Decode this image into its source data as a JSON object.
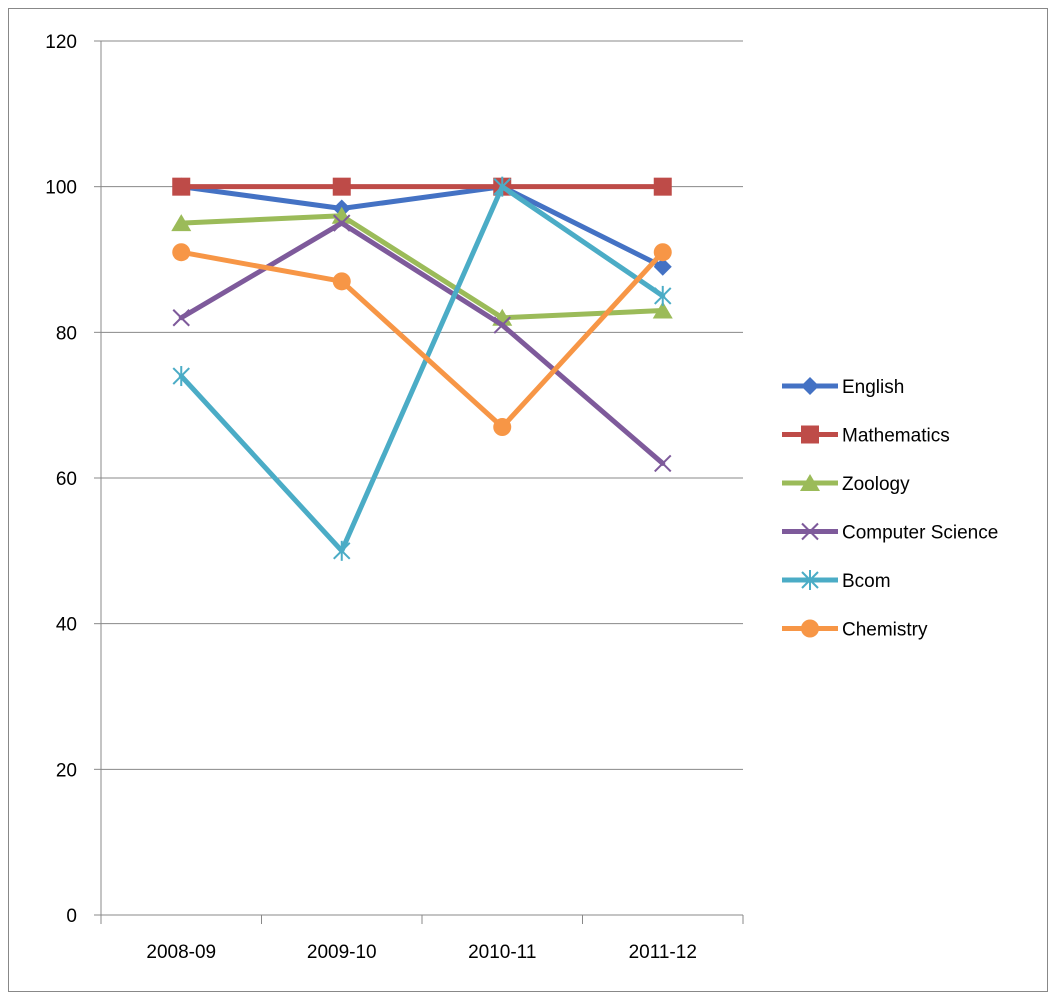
{
  "chart_data": {
    "type": "line",
    "title": "",
    "xlabel": "",
    "ylabel": "",
    "categories": [
      "2008-09",
      "2009-10",
      "2010-11",
      "2011-12"
    ],
    "ylim": [
      0,
      120
    ],
    "yticks": [
      0,
      20,
      40,
      60,
      80,
      100,
      120
    ],
    "grid": true,
    "legend_position": "right",
    "series": [
      {
        "name": "English",
        "values": [
          100,
          97,
          100,
          89
        ],
        "color": "#4472C4",
        "marker": "diamond"
      },
      {
        "name": "Mathematics",
        "values": [
          100,
          100,
          100,
          100
        ],
        "color": "#BE4B48",
        "marker": "square"
      },
      {
        "name": "Zoology",
        "values": [
          95,
          96,
          82,
          83
        ],
        "color": "#9BBB59",
        "marker": "triangle"
      },
      {
        "name": "Computer Science",
        "values": [
          82,
          95,
          81,
          62
        ],
        "color": "#7E5A9B",
        "marker": "x"
      },
      {
        "name": "Bcom",
        "values": [
          74,
          50,
          100,
          85
        ],
        "color": "#4BACC6",
        "marker": "star"
      },
      {
        "name": "Chemistry",
        "values": [
          91,
          87,
          67,
          91
        ],
        "color": "#F79646",
        "marker": "circle"
      }
    ]
  }
}
